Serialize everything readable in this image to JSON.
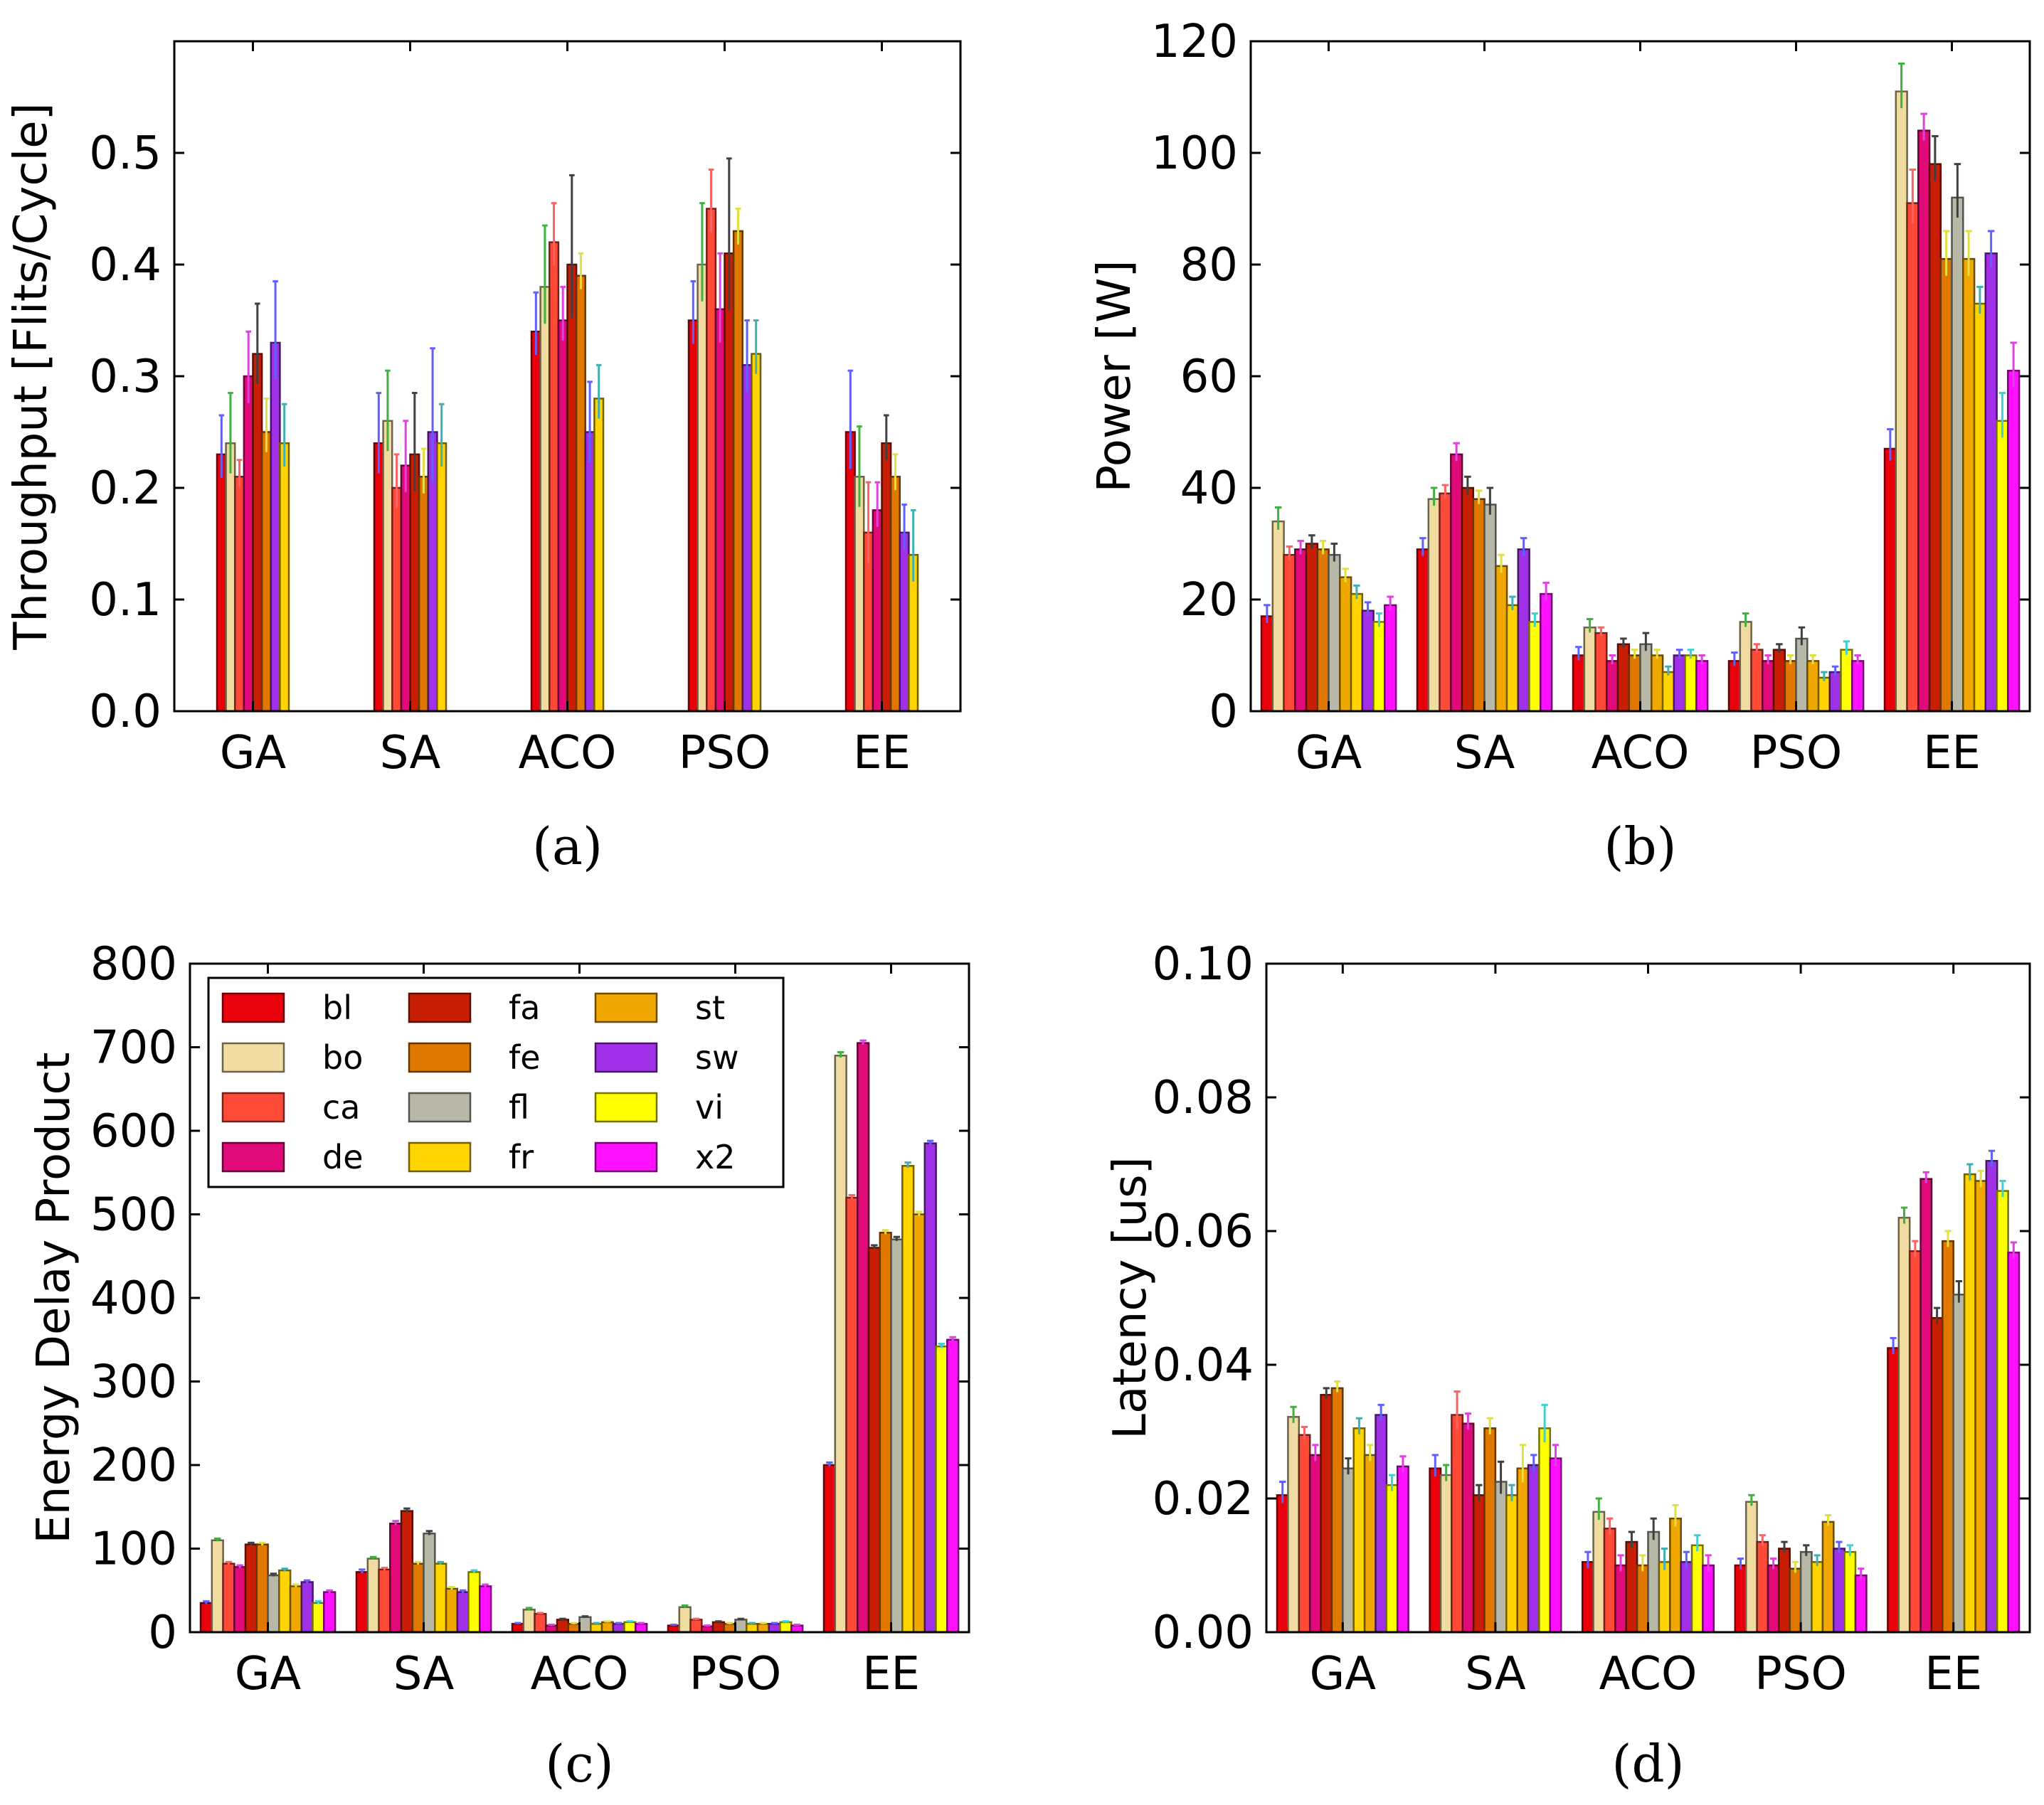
{
  "chart_data": [
    {
      "type": "bar",
      "panel_label": "(a)",
      "ylabel": "Throughput [Flits/Cycle]",
      "ylim": [
        0,
        0.6
      ],
      "yticks": [
        "0.0",
        "0.1",
        "0.2",
        "0.3",
        "0.4",
        "0.5"
      ],
      "categories": [
        "GA",
        "SA",
        "ACO",
        "PSO",
        "EE"
      ],
      "series": [
        {
          "name": "bl",
          "values": [
            0.23,
            0.24,
            0.34,
            0.35,
            0.25
          ],
          "errors": [
            0.035,
            0.045,
            0.035,
            0.035,
            0.055
          ]
        },
        {
          "name": "bo",
          "values": [
            0.24,
            0.26,
            0.38,
            0.4,
            0.21
          ],
          "errors": [
            0.045,
            0.045,
            0.055,
            0.055,
            0.045
          ]
        },
        {
          "name": "ca",
          "values": [
            0.21,
            0.2,
            0.42,
            0.45,
            0.16
          ],
          "errors": [
            0.015,
            0.03,
            0.035,
            0.035,
            0.045
          ]
        },
        {
          "name": "de",
          "values": [
            0.3,
            0.22,
            0.35,
            0.36,
            0.18
          ],
          "errors": [
            0.04,
            0.04,
            0.03,
            0.05,
            0.025
          ]
        },
        {
          "name": "fa",
          "values": [
            0.32,
            0.23,
            0.4,
            0.41,
            0.24
          ],
          "errors": [
            0.045,
            0.055,
            0.08,
            0.085,
            0.025
          ]
        },
        {
          "name": "fe",
          "values": [
            0.25,
            0.21,
            0.39,
            0.43,
            0.21
          ],
          "errors": [
            0.03,
            0.025,
            0.02,
            0.02,
            0.02
          ]
        },
        {
          "name": "sw",
          "values": [
            0.33,
            0.25,
            0.25,
            0.31,
            0.16
          ],
          "errors": [
            0.055,
            0.075,
            0.045,
            0.04,
            0.025
          ]
        },
        {
          "name": "fr",
          "values": [
            0.24,
            0.24,
            0.28,
            0.32,
            0.14
          ],
          "errors": [
            0.035,
            0.035,
            0.03,
            0.03,
            0.04
          ]
        }
      ]
    },
    {
      "type": "bar",
      "panel_label": "(b)",
      "ylabel": "Power [W]",
      "ylim": [
        0,
        120
      ],
      "yticks": [
        "0",
        "20",
        "40",
        "60",
        "80",
        "100",
        "120"
      ],
      "categories": [
        "GA",
        "SA",
        "ACO",
        "PSO",
        "EE"
      ],
      "series": [
        {
          "name": "bl",
          "values": [
            17,
            29,
            10,
            9,
            47
          ],
          "errors": [
            2,
            2,
            1.5,
            1.5,
            3.5
          ]
        },
        {
          "name": "bo",
          "values": [
            34,
            38,
            15,
            16,
            111
          ],
          "errors": [
            2.5,
            2,
            1.5,
            1.5,
            5
          ]
        },
        {
          "name": "ca",
          "values": [
            28,
            39,
            14,
            11,
            91
          ],
          "errors": [
            1.5,
            1.5,
            1,
            1,
            6
          ]
        },
        {
          "name": "de",
          "values": [
            29,
            46,
            9,
            9,
            104
          ],
          "errors": [
            1.5,
            2,
            1,
            1,
            3
          ]
        },
        {
          "name": "fa",
          "values": [
            30,
            40,
            12,
            11,
            98
          ],
          "errors": [
            1.5,
            2,
            1,
            1,
            5
          ]
        },
        {
          "name": "fe",
          "values": [
            29,
            38,
            10,
            9,
            81
          ],
          "errors": [
            1.5,
            1.5,
            1,
            1,
            5
          ]
        },
        {
          "name": "fl",
          "values": [
            28,
            37,
            12,
            13,
            92
          ],
          "errors": [
            2,
            3,
            2,
            2,
            6
          ]
        },
        {
          "name": "st",
          "values": [
            24,
            26,
            10,
            9,
            81
          ],
          "errors": [
            1.5,
            2,
            1,
            1,
            5
          ]
        },
        {
          "name": "fr",
          "values": [
            21,
            19,
            7,
            6,
            73
          ],
          "errors": [
            1.5,
            1.5,
            1,
            1,
            3
          ]
        },
        {
          "name": "sw",
          "values": [
            18,
            29,
            10,
            7,
            82
          ],
          "errors": [
            1.5,
            2,
            1,
            1,
            4
          ]
        },
        {
          "name": "vi",
          "values": [
            16,
            16,
            10,
            11,
            52
          ],
          "errors": [
            1.5,
            1.5,
            1,
            1.5,
            5
          ]
        },
        {
          "name": "x2",
          "values": [
            19,
            21,
            9,
            9,
            61
          ],
          "errors": [
            1.5,
            2,
            1,
            1,
            5
          ]
        }
      ]
    },
    {
      "type": "bar",
      "panel_label": "(c)",
      "ylabel": "Energy Delay Product",
      "ylim": [
        0,
        800
      ],
      "yticks": [
        "0",
        "100",
        "200",
        "300",
        "400",
        "500",
        "600",
        "700",
        "800"
      ],
      "categories": [
        "GA",
        "SA",
        "ACO",
        "PSO",
        "EE"
      ],
      "legend": [
        "bl",
        "bo",
        "ca",
        "de",
        "fa",
        "fe",
        "fl",
        "fr",
        "st",
        "sw",
        "vi",
        "x2"
      ],
      "series": [
        {
          "name": "bl",
          "values": [
            35,
            72,
            10,
            8,
            200
          ],
          "errors": [
            2,
            3,
            1,
            1,
            3
          ]
        },
        {
          "name": "bo",
          "values": [
            110,
            88,
            27,
            30,
            690
          ],
          "errors": [
            2,
            2,
            2,
            2,
            4
          ]
        },
        {
          "name": "ca",
          "values": [
            82,
            75,
            22,
            15,
            520
          ],
          "errors": [
            2,
            2,
            1,
            1,
            3
          ]
        },
        {
          "name": "de",
          "values": [
            78,
            130,
            8,
            7,
            705
          ],
          "errors": [
            2,
            3,
            1,
            1,
            3
          ]
        },
        {
          "name": "fa",
          "values": [
            105,
            145,
            15,
            12,
            460
          ],
          "errors": [
            2,
            3,
            1,
            1,
            3
          ]
        },
        {
          "name": "fe",
          "values": [
            105,
            82,
            10,
            10,
            478
          ],
          "errors": [
            2,
            2,
            1,
            1,
            3
          ]
        },
        {
          "name": "fl",
          "values": [
            68,
            118,
            18,
            15,
            470
          ],
          "errors": [
            2,
            3,
            1,
            1,
            3
          ]
        },
        {
          "name": "fr",
          "values": [
            74,
            82,
            10,
            10,
            558
          ],
          "errors": [
            2,
            2,
            1,
            1,
            4
          ]
        },
        {
          "name": "st",
          "values": [
            55,
            52,
            12,
            10,
            500
          ],
          "errors": [
            2,
            2,
            1,
            1,
            3
          ]
        },
        {
          "name": "sw",
          "values": [
            60,
            48,
            10,
            10,
            585
          ],
          "errors": [
            2,
            2,
            1,
            1,
            3
          ]
        },
        {
          "name": "vi",
          "values": [
            35,
            72,
            12,
            12,
            342
          ],
          "errors": [
            2,
            2,
            1,
            1,
            3
          ]
        },
        {
          "name": "x2",
          "values": [
            48,
            55,
            10,
            8,
            350
          ],
          "errors": [
            2,
            2,
            1,
            1,
            3
          ]
        }
      ]
    },
    {
      "type": "bar",
      "panel_label": "(d)",
      "ylabel": "Latency [us]",
      "ylim": [
        0,
        0.1
      ],
      "yticks": [
        "0.00",
        "0.02",
        "0.04",
        "0.06",
        "0.08",
        "0.10"
      ],
      "categories": [
        "GA",
        "SA",
        "ACO",
        "PSO",
        "EE"
      ],
      "series": [
        {
          "name": "bl",
          "values": [
            0.0205,
            0.0245,
            0.0105,
            0.01,
            0.0425
          ],
          "errors": [
            0.002,
            0.002,
            0.0015,
            0.001,
            0.0015
          ]
        },
        {
          "name": "bo",
          "values": [
            0.0322,
            0.0235,
            0.018,
            0.0195,
            0.062
          ],
          "errors": [
            0.0015,
            0.0015,
            0.002,
            0.001,
            0.0015
          ]
        },
        {
          "name": "ca",
          "values": [
            0.0295,
            0.0325,
            0.0155,
            0.0135,
            0.057
          ],
          "errors": [
            0.0012,
            0.0035,
            0.0015,
            0.001,
            0.0015
          ]
        },
        {
          "name": "de",
          "values": [
            0.0265,
            0.0312,
            0.01,
            0.01,
            0.0678
          ],
          "errors": [
            0.0015,
            0.0015,
            0.0015,
            0.001,
            0.001
          ]
        },
        {
          "name": "fa",
          "values": [
            0.0355,
            0.0205,
            0.0135,
            0.0125,
            0.047
          ],
          "errors": [
            0.001,
            0.0015,
            0.0015,
            0.001,
            0.0015
          ]
        },
        {
          "name": "fe",
          "values": [
            0.0365,
            0.0305,
            0.01,
            0.0095,
            0.0585
          ],
          "errors": [
            0.001,
            0.0015,
            0.0015,
            0.001,
            0.0015
          ]
        },
        {
          "name": "fl",
          "values": [
            0.0245,
            0.0225,
            0.015,
            0.012,
            0.0505
          ],
          "errors": [
            0.0015,
            0.003,
            0.002,
            0.001,
            0.002
          ]
        },
        {
          "name": "fr",
          "values": [
            0.0305,
            0.0205,
            0.0105,
            0.0105,
            0.0685
          ],
          "errors": [
            0.0015,
            0.0015,
            0.002,
            0.001,
            0.0015
          ]
        },
        {
          "name": "st",
          "values": [
            0.0265,
            0.0245,
            0.017,
            0.0165,
            0.0675
          ],
          "errors": [
            0.0015,
            0.0035,
            0.002,
            0.001,
            0.0015
          ]
        },
        {
          "name": "sw",
          "values": [
            0.0325,
            0.025,
            0.0105,
            0.0125,
            0.0705
          ],
          "errors": [
            0.0015,
            0.0015,
            0.0015,
            0.001,
            0.0015
          ]
        },
        {
          "name": "vi",
          "values": [
            0.022,
            0.0305,
            0.013,
            0.012,
            0.066
          ],
          "errors": [
            0.0015,
            0.0035,
            0.0015,
            0.001,
            0.0015
          ]
        },
        {
          "name": "x2",
          "values": [
            0.0248,
            0.026,
            0.01,
            0.0085,
            0.0568
          ],
          "errors": [
            0.0015,
            0.002,
            0.0015,
            0.001,
            0.0015
          ]
        }
      ]
    }
  ],
  "series_colors": {
    "bl": "#e8000b",
    "bo": "#f0dca0",
    "ca": "#ff4a38",
    "de": "#e00a78",
    "fa": "#c81e05",
    "fe": "#e07800",
    "fl": "#b8b8a8",
    "fr": "#ffd400",
    "st": "#f0a800",
    "sw": "#a030e8",
    "vi": "#ffff00",
    "x2": "#ff10ff"
  },
  "error_colors": {
    "bl": "#6060ff",
    "bo": "#40b040",
    "ca": "#ff6060",
    "de": "#e040e0",
    "fa": "#404040",
    "fe": "#e0e040",
    "fl": "#404040",
    "fr": "#40b0b0",
    "st": "#e0e040",
    "sw": "#6060ff",
    "vi": "#40d0d0",
    "x2": "#e040e0"
  }
}
